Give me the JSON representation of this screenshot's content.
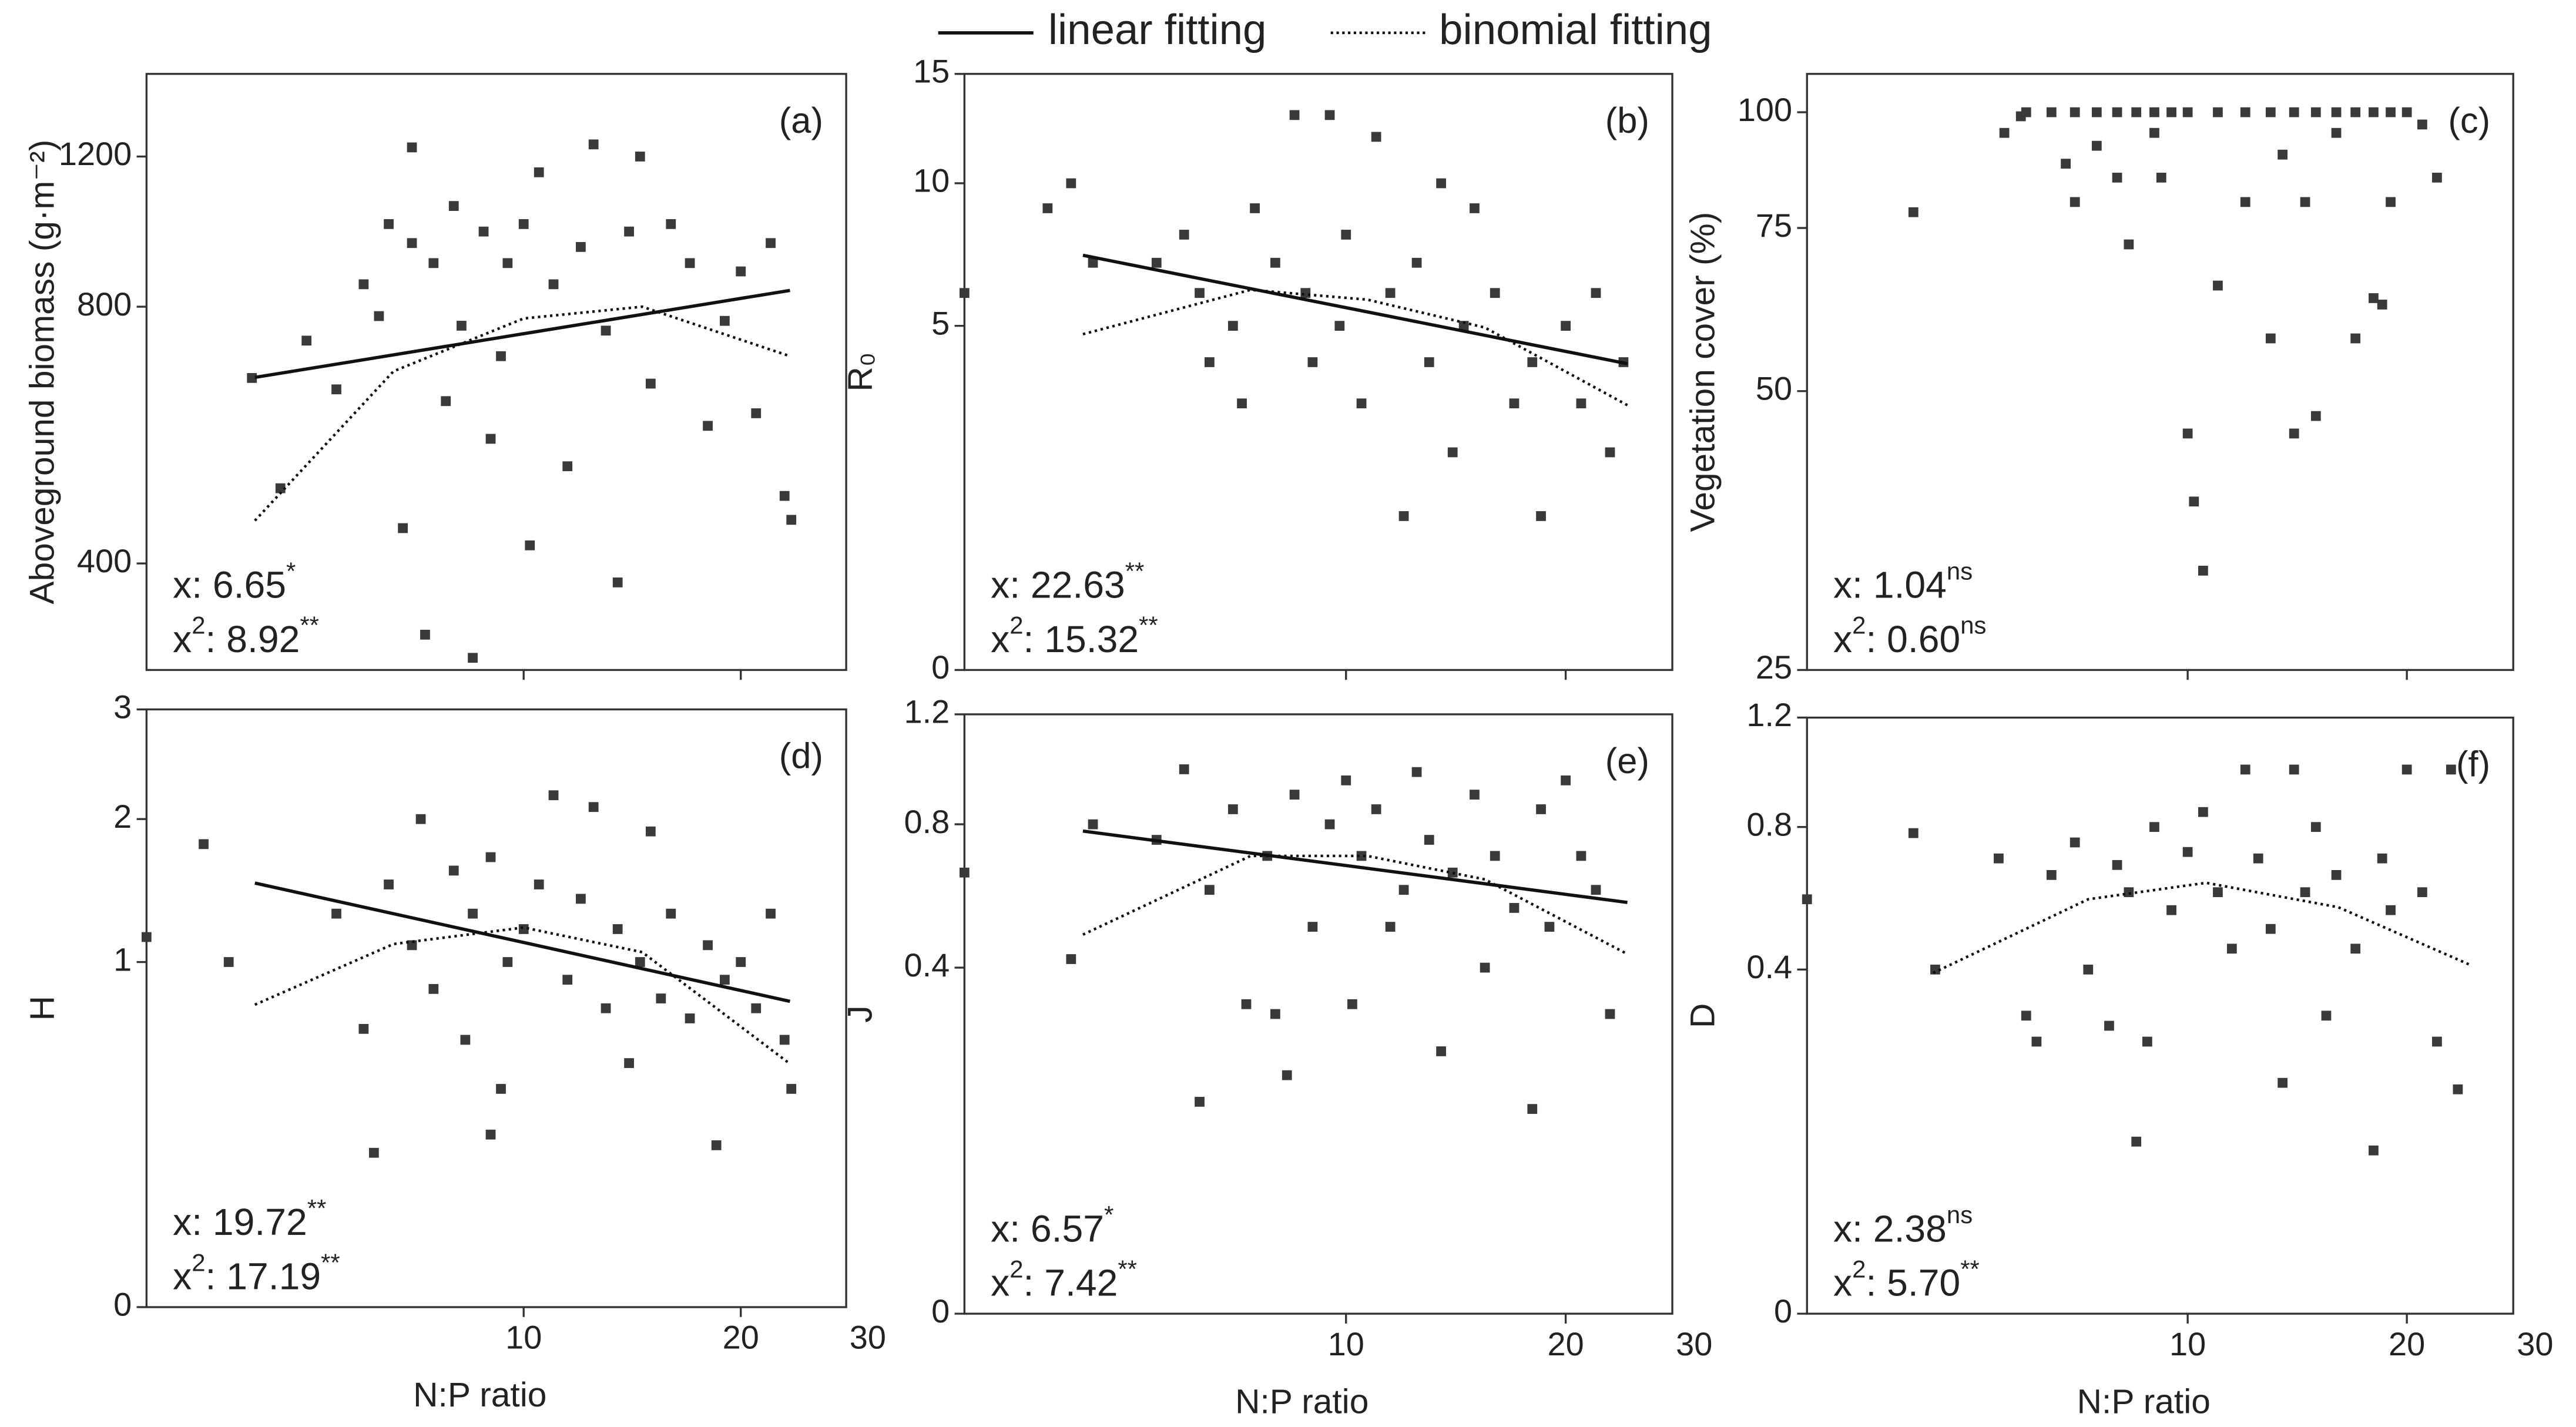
{
  "legend": [
    {
      "name": "linear fitting",
      "style": "solid"
    },
    {
      "name": "binomial fitting",
      "style": "dotted"
    }
  ],
  "chart_data": [
    {
      "type": "scatter",
      "panel": "(a)",
      "ylabel": "Aboveground biomass (g·m⁻²)",
      "xscale": "log",
      "yscale": "log",
      "xlim": [
        3,
        28
      ],
      "xticks": [
        10,
        20,
        30
      ],
      "show_xtick_labels": false,
      "ylim": [
        300,
        1500
      ],
      "yticks": [
        400,
        800,
        1200
      ],
      "color": "#3a3a3a",
      "stats": [
        [
          "x: 6.65",
          "*"
        ],
        [
          "x",
          "2",
          ": 8.92",
          "**"
        ]
      ],
      "points": {
        "x": [
          4.2,
          4.6,
          5,
          5.5,
          6,
          6.3,
          6.5,
          6.8,
          7,
          7,
          7.3,
          7.5,
          7.8,
          8,
          8.2,
          8.5,
          8.8,
          9,
          9.3,
          9.5,
          10,
          10.2,
          10.5,
          11,
          11.5,
          12,
          12.5,
          13,
          13.5,
          14,
          14.5,
          15,
          16,
          17,
          18,
          19,
          20,
          21,
          22,
          23,
          23.5
        ],
        "y": [
          660,
          490,
          730,
          640,
          850,
          780,
          1000,
          440,
          1230,
          950,
          330,
          900,
          620,
          1050,
          760,
          310,
          980,
          560,
          700,
          900,
          1000,
          420,
          1150,
          850,
          520,
          940,
          1240,
          750,
          380,
          980,
          1200,
          650,
          1000,
          900,
          580,
          770,
          880,
          600,
          950,
          480,
          450
        ]
      },
      "linear_fit": {
        "x": [
          4.24,
          23.4
        ],
        "values": [
          661,
          836
        ]
      },
      "binomial_fit": {
        "x": [
          4.24,
          6.6,
          10,
          14.6,
          23.4
        ],
        "values": [
          449,
          672,
          775,
          800,
          700
        ]
      }
    },
    {
      "type": "scatter",
      "panel": "(b)",
      "ylabel": "R₀",
      "xscale": "log",
      "yscale": "sqrt",
      "xlim": [
        3,
        28
      ],
      "xticks": [
        10,
        20,
        30
      ],
      "show_xtick_labels": false,
      "ylim": [
        0,
        15
      ],
      "yticks": [
        0,
        5,
        10,
        15
      ],
      "color": "#3a3a3a",
      "stats": [
        [
          "x: 22.63",
          "**"
        ],
        [
          "x",
          "2",
          ": 15.32",
          "**"
        ]
      ],
      "points": {
        "x": [
          3,
          3.9,
          4.2,
          4.5,
          5.5,
          6,
          6.3,
          6.5,
          7,
          7.2,
          7.5,
          8,
          8.5,
          8.8,
          9,
          9.5,
          9.8,
          10,
          10.5,
          11,
          11.5,
          12,
          12.5,
          13,
          13.5,
          14,
          14.5,
          15,
          16,
          17,
          18,
          18.5,
          20,
          21,
          22,
          23,
          24
        ],
        "y": [
          6,
          9,
          10,
          7,
          7,
          8,
          6,
          4,
          5,
          3,
          9,
          7,
          13,
          6,
          4,
          13,
          5,
          8,
          3,
          12,
          6,
          1,
          7,
          4,
          10,
          2,
          5,
          9,
          6,
          3,
          4,
          1,
          5,
          3,
          6,
          2,
          4
        ]
      },
      "linear_fit": {
        "x": [
          4.36,
          24.3
        ],
        "values": [
          7.26,
          3.96
        ]
      },
      "binomial_fit": {
        "x": [
          4.36,
          7.4,
          10.7,
          15.5,
          24.3
        ],
        "values": [
          4.76,
          6.1,
          5.79,
          4.95,
          2.96
        ]
      }
    },
    {
      "type": "scatter",
      "panel": "(c)",
      "ylabel": "Vegetation cover (%)",
      "xscale": "log",
      "yscale": "log",
      "xlim": [
        3,
        28
      ],
      "xticks": [
        10,
        20,
        30
      ],
      "show_xtick_labels": false,
      "ylim": [
        25,
        110
      ],
      "yticks": [
        25,
        50,
        75,
        100
      ],
      "color": "#3a3a3a",
      "stats": [
        [
          "x: 1.04",
          "ns"
        ],
        [
          "x",
          "2",
          ": 0.60",
          "ns"
        ]
      ],
      "points": {
        "x": [
          5.6,
          5.9,
          6,
          6.5,
          7,
          7.5,
          8,
          8.5,
          9,
          9.5,
          10,
          11,
          12,
          13,
          14,
          15,
          16,
          17,
          18,
          19,
          20,
          4.2,
          6.8,
          7,
          7.5,
          8,
          8.3,
          9,
          9.2,
          10,
          10.2,
          10.5,
          11,
          12,
          13,
          13.5,
          14,
          14.5,
          15,
          16,
          17,
          18,
          18.5,
          19,
          21,
          22
        ],
        "y": [
          95,
          99,
          100,
          100,
          100,
          100,
          100,
          100,
          100,
          100,
          100,
          100,
          100,
          100,
          100,
          100,
          100,
          100,
          100,
          100,
          100,
          78,
          88,
          80,
          92,
          85,
          72,
          95,
          85,
          45,
          38,
          32,
          65,
          80,
          57,
          90,
          45,
          80,
          47,
          95,
          57,
          63,
          62,
          80,
          97,
          85
        ]
      }
    },
    {
      "type": "scatter",
      "panel": "(d)",
      "ylabel": "H",
      "xlabel": "N:P ratio",
      "xscale": "log",
      "yscale": "sqrt",
      "xlim": [
        3,
        28
      ],
      "xticks": [
        10,
        20,
        30
      ],
      "show_xtick_labels": true,
      "ylim": [
        0,
        3
      ],
      "yticks": [
        0,
        1,
        2,
        3
      ],
      "color": "#3a3a3a",
      "stats": [
        [
          "x: 19.72",
          "**"
        ],
        [
          "x",
          "2",
          ": 17.19",
          "**"
        ]
      ],
      "points": {
        "x": [
          3,
          3.6,
          3.9,
          5.5,
          6,
          6.2,
          6.5,
          7,
          7.2,
          7.5,
          8,
          8.3,
          8.5,
          9,
          9,
          9.3,
          9.5,
          10,
          10.5,
          11,
          11.5,
          12,
          12.5,
          13,
          13.5,
          14,
          14.5,
          15,
          15.5,
          16,
          17,
          18,
          18.5,
          19,
          20,
          21,
          22,
          23,
          23.5
        ],
        "y": [
          1.15,
          1.8,
          1.0,
          1.3,
          0.65,
          0.2,
          1.5,
          1.1,
          2.0,
          0.85,
          1.6,
          0.6,
          1.3,
          0.25,
          1.7,
          0.4,
          1.0,
          1.2,
          1.5,
          2.2,
          0.9,
          1.4,
          2.1,
          0.75,
          1.2,
          0.5,
          1.0,
          1.9,
          0.8,
          1.3,
          0.7,
          1.1,
          0.22,
          0.9,
          1.0,
          0.75,
          1.3,
          0.6,
          0.4
        ]
      },
      "linear_fit": {
        "x": [
          4.24,
          23.4
        ],
        "values": [
          1.51,
          0.785
        ]
      },
      "binomial_fit": {
        "x": [
          4.24,
          6.6,
          10,
          14.6,
          23.4
        ],
        "values": [
          0.768,
          1.107,
          1.21,
          1.058,
          0.497
        ]
      }
    },
    {
      "type": "scatter",
      "panel": "(e)",
      "ylabel": "J",
      "xlabel": "N:P ratio",
      "xscale": "log",
      "yscale": "sqrt",
      "xlim": [
        3,
        28
      ],
      "xticks": [
        10,
        20,
        30
      ],
      "show_xtick_labels": true,
      "ylim": [
        0,
        1.2
      ],
      "yticks": [
        0,
        0.4,
        0.8,
        1.2
      ],
      "color": "#3a3a3a",
      "stats": [
        [
          "x: 6.57",
          "*"
        ],
        [
          "x",
          "2",
          ": 7.42",
          "**"
        ]
      ],
      "points": {
        "x": [
          3,
          4.2,
          4.5,
          5.5,
          6,
          6.3,
          6.5,
          7,
          7.3,
          7.8,
          8,
          8.3,
          8.5,
          9,
          9.5,
          10,
          10.2,
          10.5,
          11,
          11.5,
          12,
          12.5,
          13,
          13.5,
          14,
          15,
          15.5,
          16,
          17,
          18,
          18.5,
          19,
          20,
          21,
          22,
          23
        ],
        "y": [
          0.65,
          0.42,
          0.8,
          0.75,
          0.99,
          0.15,
          0.6,
          0.85,
          0.32,
          0.7,
          0.3,
          0.19,
          0.9,
          0.5,
          0.8,
          0.95,
          0.32,
          0.7,
          0.85,
          0.5,
          0.6,
          0.98,
          0.75,
          0.23,
          0.65,
          0.9,
          0.4,
          0.7,
          0.55,
          0.14,
          0.85,
          0.5,
          0.95,
          0.7,
          0.6,
          0.3
        ]
      },
      "linear_fit": {
        "x": [
          4.36,
          24.3
        ],
        "values": [
          0.778,
          0.565
        ]
      },
      "binomial_fit": {
        "x": [
          4.36,
          7.4,
          10.7,
          15.5,
          24.3
        ],
        "values": [
          0.48,
          0.7,
          0.7,
          0.63,
          0.432
        ]
      }
    },
    {
      "type": "scatter",
      "panel": "(f)",
      "ylabel": "D",
      "xlabel": "N:P ratio",
      "xscale": "log",
      "yscale": "sqrt",
      "xlim": [
        3,
        28
      ],
      "xticks": [
        10,
        20,
        30
      ],
      "show_xtick_labels": true,
      "ylim": [
        0,
        1.2
      ],
      "yticks": [
        0,
        0.4,
        0.8,
        1.2
      ],
      "color": "#3a3a3a",
      "stats": [
        [
          "x: 2.38",
          "ns"
        ],
        [
          "x",
          "2",
          ": 5.70",
          "**"
        ]
      ],
      "points": {
        "x": [
          3,
          4.2,
          4.5,
          5.5,
          6,
          6.2,
          6.5,
          7,
          7.3,
          7.8,
          8,
          8.3,
          8.5,
          8.8,
          9,
          9.5,
          10,
          10.5,
          11,
          11.5,
          12,
          12.5,
          13,
          13.5,
          14,
          14.5,
          15,
          15.5,
          16,
          17,
          18,
          18.5,
          19,
          20,
          21,
          22,
          23,
          23.5
        ],
        "y": [
          0.58,
          0.78,
          0.4,
          0.7,
          0.3,
          0.25,
          0.65,
          0.75,
          0.4,
          0.28,
          0.68,
          0.6,
          0.1,
          0.25,
          0.8,
          0.55,
          0.72,
          0.85,
          0.6,
          0.45,
          1.0,
          0.7,
          0.5,
          0.18,
          1.0,
          0.6,
          0.8,
          0.3,
          0.65,
          0.45,
          0.09,
          0.7,
          0.55,
          1.0,
          0.6,
          0.25,
          1.0,
          0.17
        ]
      },
      "binomial_fit": {
        "x": [
          4.47,
          7.3,
          10.6,
          16.1,
          24.5
        ],
        "values": [
          0.392,
          0.58,
          0.627,
          0.558,
          0.41
        ]
      }
    }
  ]
}
